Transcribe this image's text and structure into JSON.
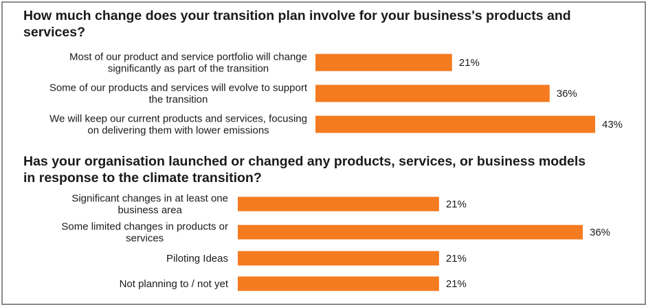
{
  "chart_data": [
    {
      "type": "bar",
      "orientation": "horizontal",
      "title_lines": [
        "How much change does your transition plan involve for your business's products and",
        "services?"
      ],
      "categories": [
        [
          "Most of our product and service portfolio will change",
          "significantly as part of the transition"
        ],
        [
          "Some of our products and services will evolve to support",
          "the transition"
        ],
        [
          "We will keep our current products and services, focusing",
          "on delivering them with lower emissions"
        ]
      ],
      "values": [
        21,
        36,
        43
      ],
      "value_labels": [
        "21%",
        "36%",
        "43%"
      ],
      "unit": "%",
      "xlim": [
        0,
        43
      ],
      "color": "#f47b20"
    },
    {
      "type": "bar",
      "orientation": "horizontal",
      "title_lines": [
        "Has your organisation launched or changed any products, services, or business models",
        "in response to the climate transition?"
      ],
      "categories": [
        [
          "Significant changes in at least one",
          "business area"
        ],
        [
          "Some limited changes in products or",
          "services"
        ],
        [
          "Piloting Ideas"
        ],
        [
          "Not planning to / not yet"
        ]
      ],
      "values": [
        21,
        36,
        21,
        21
      ],
      "value_labels": [
        "21%",
        "36%",
        "21%",
        "21%"
      ],
      "unit": "%",
      "xlim": [
        0,
        36
      ],
      "color": "#f47b20"
    }
  ],
  "colors": {
    "bar": "#f47b20",
    "border": "#8c8c8c",
    "text": "#1a1a1a"
  }
}
